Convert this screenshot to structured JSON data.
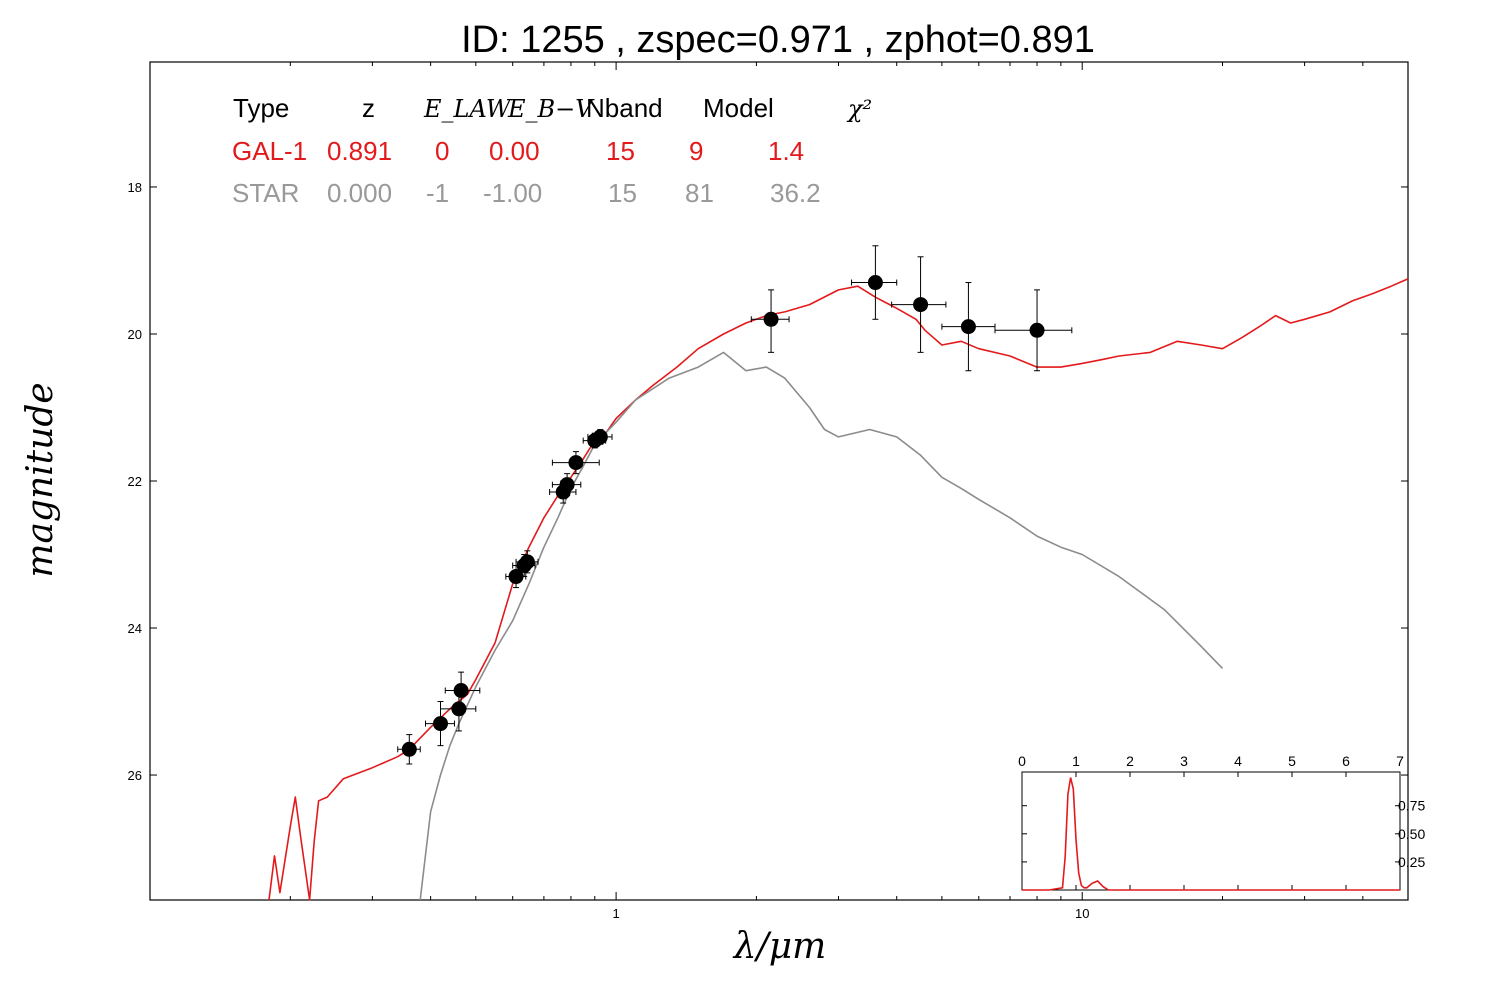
{
  "chart_data": {
    "type": "line",
    "title": "ID:  1255  , zspec=0.971 , zphot=0.891",
    "xlabel": "λ/μm",
    "ylabel": "magnitude",
    "xscale": "log",
    "xlim": [
      0.1,
      50
    ],
    "ylim": [
      27.7,
      16.3
    ],
    "x_ticks": [
      {
        "v": 1,
        "label": "1"
      },
      {
        "v": 10,
        "label": "10"
      }
    ],
    "y_ticks": [
      {
        "v": 18,
        "label": "18"
      },
      {
        "v": 20,
        "label": "20"
      },
      {
        "v": 22,
        "label": "22"
      },
      {
        "v": 24,
        "label": "24"
      },
      {
        "v": 26,
        "label": "26"
      }
    ],
    "colors": {
      "gal": "#e31a1c",
      "star": "#8c8c8c",
      "points": "#000000"
    },
    "legend_table": {
      "headers": [
        "Type",
        "z",
        "E_LAW",
        "E_B−V",
        "Nband",
        "Model",
        "χ²"
      ],
      "rows": [
        {
          "type": "GAL-1",
          "z": "0.891",
          "elaw": "0",
          "ebv": "0.00",
          "nband": "15",
          "model": "9",
          "chi2": "1.4",
          "color": "#e31a1c"
        },
        {
          "type": "STAR",
          "z": "0.000",
          "elaw": "-1",
          "ebv": "-1.00",
          "nband": "15",
          "model": "81",
          "chi2": "36.2",
          "color": "#999999"
        }
      ]
    },
    "points": [
      {
        "x": 0.36,
        "y": 25.65,
        "xerr": [
          0.34,
          0.38
        ],
        "yerr": [
          25.45,
          25.85
        ]
      },
      {
        "x": 0.42,
        "y": 25.3,
        "xerr": [
          0.39,
          0.45
        ],
        "yerr": [
          25.0,
          25.6
        ]
      },
      {
        "x": 0.46,
        "y": 25.1,
        "xerr": [
          0.42,
          0.5
        ],
        "yerr": [
          24.8,
          25.4
        ]
      },
      {
        "x": 0.465,
        "y": 24.85,
        "xerr": [
          0.43,
          0.51
        ],
        "yerr": [
          24.6,
          25.1
        ]
      },
      {
        "x": 0.61,
        "y": 23.3,
        "xerr": [
          0.58,
          0.64
        ],
        "yerr": [
          23.15,
          23.45
        ]
      },
      {
        "x": 0.635,
        "y": 23.15,
        "xerr": [
          0.6,
          0.67
        ],
        "yerr": [
          23.0,
          23.3
        ]
      },
      {
        "x": 0.645,
        "y": 23.1,
        "xerr": [
          0.61,
          0.68
        ],
        "yerr": [
          22.95,
          23.25
        ]
      },
      {
        "x": 0.77,
        "y": 22.15,
        "xerr": [
          0.72,
          0.82
        ],
        "yerr": [
          22.0,
          22.3
        ]
      },
      {
        "x": 0.785,
        "y": 22.05,
        "xerr": [
          0.73,
          0.84
        ],
        "yerr": [
          21.9,
          22.2
        ]
      },
      {
        "x": 0.82,
        "y": 21.75,
        "xerr": [
          0.73,
          0.92
        ],
        "yerr": [
          21.6,
          21.9
        ]
      },
      {
        "x": 0.9,
        "y": 21.45,
        "xerr": [
          0.85,
          0.95
        ],
        "yerr": [
          21.35,
          21.55
        ]
      },
      {
        "x": 0.925,
        "y": 21.4,
        "xerr": [
          0.87,
          0.98
        ],
        "yerr": [
          21.3,
          21.5
        ]
      },
      {
        "x": 2.15,
        "y": 19.8,
        "xerr": [
          1.95,
          2.35
        ],
        "yerr": [
          19.4,
          20.25
        ]
      },
      {
        "x": 3.6,
        "y": 19.3,
        "xerr": [
          3.2,
          4.0
        ],
        "yerr": [
          18.8,
          19.8
        ]
      },
      {
        "x": 4.5,
        "y": 19.6,
        "xerr": [
          3.9,
          5.1
        ],
        "yerr": [
          18.95,
          20.25
        ]
      },
      {
        "x": 5.7,
        "y": 19.9,
        "xerr": [
          5.0,
          6.5
        ],
        "yerr": [
          19.3,
          20.5
        ]
      },
      {
        "x": 8.0,
        "y": 19.95,
        "xerr": [
          6.5,
          9.5
        ],
        "yerr": [
          19.4,
          20.5
        ]
      }
    ],
    "series": [
      {
        "color": "#e31a1c",
        "x": [
          0.18,
          0.185,
          0.19,
          0.2,
          0.205,
          0.21,
          0.22,
          0.225,
          0.23,
          0.24,
          0.26,
          0.3,
          0.34,
          0.36,
          0.4,
          0.44,
          0.48,
          0.5,
          0.55,
          0.6,
          0.65,
          0.7,
          0.75,
          0.8,
          0.85,
          0.9,
          0.95,
          1.0,
          1.1,
          1.2,
          1.35,
          1.5,
          1.7,
          1.9,
          2.1,
          2.3,
          2.6,
          3.0,
          3.3,
          3.6,
          4.0,
          4.4,
          4.6,
          5.0,
          5.5,
          6.0,
          7.0,
          8.0,
          9.0,
          10.0,
          11.0,
          12.0,
          14.0,
          16.0,
          18.0,
          20.0,
          22.0,
          24.0,
          26.0,
          28.0,
          30.0,
          34.0,
          38.0,
          42.0,
          46.0,
          50.0
        ],
        "y": [
          27.7,
          27.1,
          27.6,
          26.7,
          26.3,
          26.8,
          27.7,
          26.9,
          26.35,
          26.3,
          26.05,
          25.9,
          25.75,
          25.65,
          25.35,
          25.1,
          24.9,
          24.7,
          24.2,
          23.4,
          22.9,
          22.5,
          22.2,
          21.95,
          21.7,
          21.45,
          21.35,
          21.15,
          20.9,
          20.7,
          20.45,
          20.2,
          20.0,
          19.85,
          19.75,
          19.7,
          19.6,
          19.4,
          19.35,
          19.5,
          19.65,
          19.8,
          19.95,
          20.15,
          20.1,
          20.2,
          20.3,
          20.45,
          20.45,
          20.4,
          20.35,
          20.3,
          20.25,
          20.1,
          20.15,
          20.2,
          20.05,
          19.9,
          19.75,
          19.85,
          19.8,
          19.7,
          19.55,
          19.45,
          19.35,
          19.25
        ]
      },
      {
        "color": "#8c8c8c",
        "x": [
          0.38,
          0.4,
          0.42,
          0.44,
          0.46,
          0.5,
          0.55,
          0.6,
          0.65,
          0.7,
          0.75,
          0.8,
          0.85,
          0.9,
          1.0,
          1.1,
          1.3,
          1.5,
          1.7,
          1.9,
          2.1,
          2.3,
          2.6,
          2.8,
          3.0,
          3.5,
          4.0,
          4.5,
          5.0,
          5.5,
          6.0,
          7.0,
          8.0,
          9.0,
          10.0,
          12.0,
          15.0,
          18.0,
          20.0
        ],
        "y": [
          27.7,
          26.5,
          26.0,
          25.6,
          25.3,
          24.8,
          24.3,
          23.9,
          23.4,
          22.9,
          22.5,
          22.1,
          21.8,
          21.5,
          21.2,
          20.9,
          20.6,
          20.45,
          20.25,
          20.5,
          20.45,
          20.6,
          21.0,
          21.3,
          21.4,
          21.3,
          21.4,
          21.65,
          21.95,
          22.1,
          22.25,
          22.5,
          22.75,
          22.9,
          23.0,
          23.3,
          23.75,
          24.25,
          24.55
        ]
      }
    ],
    "pdz_inset": {
      "x_ticks": [
        0,
        1,
        2,
        3,
        4,
        5,
        6,
        7
      ],
      "y_ticks": [
        {
          "v": 0.25,
          "label": "0.25"
        },
        {
          "v": 0.5,
          "label": "0.50"
        },
        {
          "v": 0.75,
          "label": "0.75"
        }
      ],
      "xlim": [
        0,
        7
      ],
      "ylim": [
        0,
        1.05
      ],
      "x": [
        0,
        0.5,
        0.75,
        0.8,
        0.85,
        0.9,
        0.95,
        1.0,
        1.05,
        1.1,
        1.15,
        1.2,
        1.3,
        1.4,
        1.5,
        1.6,
        7.0
      ],
      "y": [
        0,
        0,
        0.02,
        0.3,
        0.85,
        1.0,
        0.9,
        0.45,
        0.15,
        0.04,
        0.02,
        0.02,
        0.06,
        0.08,
        0.03,
        0.0,
        0.0
      ]
    }
  }
}
